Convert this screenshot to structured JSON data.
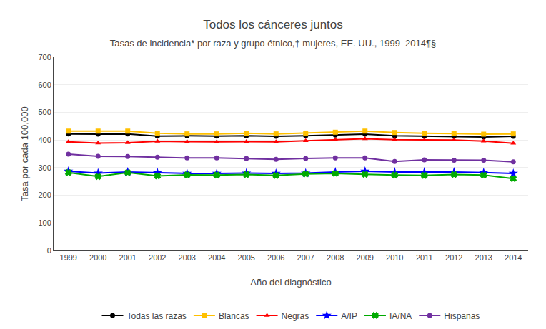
{
  "chart_data": {
    "type": "line",
    "title": "Todos los cánceres juntos",
    "subtitle": "Tasas de incidencia* por raza y grupo étnico,† mujeres, EE. UU., 1999–2014¶§",
    "xlabel": "Año del diagnóstico",
    "ylabel": "Tasa por cada 100,000",
    "x": [
      1999,
      2000,
      2001,
      2002,
      2003,
      2004,
      2005,
      2006,
      2007,
      2008,
      2009,
      2010,
      2011,
      2012,
      2013,
      2014
    ],
    "series": [
      {
        "name": "Todas las razas",
        "color": "#000000",
        "marker": "circle",
        "values": [
          422,
          421,
          422,
          414,
          415,
          414,
          415,
          413,
          415,
          418,
          421,
          415,
          414,
          413,
          411,
          413
        ]
      },
      {
        "name": "Blancas",
        "color": "#FFC000",
        "marker": "square",
        "values": [
          432,
          432,
          432,
          424,
          422,
          422,
          424,
          422,
          425,
          428,
          432,
          427,
          424,
          423,
          421,
          422
        ]
      },
      {
        "name": "Negras",
        "color": "#FF0000",
        "marker": "triangle-up",
        "values": [
          393,
          389,
          390,
          395,
          394,
          393,
          394,
          393,
          397,
          401,
          404,
          401,
          400,
          400,
          396,
          388
        ]
      },
      {
        "name": "A/IP",
        "color": "#0000FF",
        "marker": "star",
        "values": [
          287,
          280,
          284,
          282,
          279,
          279,
          280,
          279,
          280,
          284,
          287,
          284,
          284,
          284,
          282,
          279
        ]
      },
      {
        "name": "IA/NA",
        "color": "#00AA00",
        "marker": "x",
        "values": [
          282,
          268,
          282,
          270,
          274,
          273,
          275,
          272,
          277,
          279,
          276,
          273,
          272,
          275,
          273,
          260
        ]
      },
      {
        "name": "Hispanas",
        "color": "#7030A0",
        "marker": "circle",
        "values": [
          349,
          341,
          340,
          338,
          335,
          335,
          333,
          330,
          333,
          335,
          335,
          322,
          328,
          327,
          327,
          321
        ]
      }
    ],
    "xlim": [
      1998.5,
      2014.5
    ],
    "xticks": [
      1999,
      2000,
      2001,
      2002,
      2003,
      2004,
      2005,
      2006,
      2007,
      2008,
      2009,
      2010,
      2011,
      2012,
      2013,
      2014
    ],
    "ylim": [
      0,
      700
    ],
    "yticks": [
      0,
      100,
      200,
      300,
      400,
      500,
      600,
      700
    ],
    "grid": true,
    "legend": "bottom"
  }
}
